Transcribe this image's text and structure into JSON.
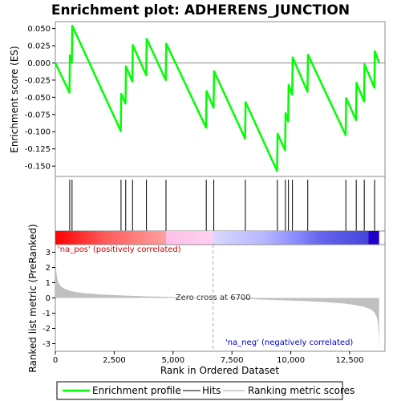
{
  "chart_data": [
    {
      "type": "line",
      "title": "Enrichment plot: ADHERENS_JUNCTION",
      "ylabel": "Enrichment score (ES)",
      "xlim": [
        0,
        14000
      ],
      "ylim": [
        -0.165,
        0.06
      ],
      "yticks": [
        0.05,
        0.025,
        0.0,
        -0.025,
        -0.05,
        -0.075,
        -0.1,
        -0.125,
        -0.15
      ],
      "ytick_labels": [
        "0.050",
        "0.025",
        "0.000",
        "-0.025",
        "-0.050",
        "-0.075",
        "-0.100",
        "-0.125",
        "-0.150"
      ],
      "series": [
        {
          "name": "Enrichment profile",
          "color": "#00ff00",
          "x": [
            0,
            600,
            620,
            700,
            720,
            2780,
            2800,
            2980,
            3000,
            3270,
            3290,
            3860,
            3880,
            4690,
            4710,
            6400,
            6420,
            6720,
            6740,
            8060,
            8080,
            9420,
            9440,
            9760,
            9780,
            9890,
            9910,
            10060,
            10080,
            10710,
            10730,
            12330,
            12350,
            12770,
            12790,
            13110,
            13130,
            13550,
            13570,
            13750
          ],
          "y": [
            0.0,
            -0.043,
            0.011,
            -0.0,
            0.054,
            -0.099,
            -0.045,
            -0.059,
            -0.005,
            -0.027,
            0.026,
            -0.018,
            0.035,
            -0.025,
            0.028,
            -0.094,
            -0.041,
            -0.065,
            -0.012,
            -0.11,
            -0.057,
            -0.157,
            -0.103,
            -0.127,
            -0.073,
            -0.085,
            -0.032,
            -0.046,
            0.008,
            -0.042,
            0.012,
            -0.105,
            -0.051,
            -0.083,
            -0.029,
            -0.056,
            -0.002,
            -0.036,
            0.017,
            0.0
          ]
        }
      ],
      "zero_line": 0.0
    },
    {
      "type": "hits",
      "series": [
        {
          "name": "Hits",
          "color": "#000000",
          "x": [
            610,
            710,
            2790,
            2990,
            3280,
            3870,
            4700,
            6410,
            6730,
            8070,
            9430,
            9770,
            9900,
            10070,
            10720,
            12340,
            12780,
            13120,
            13560
          ]
        }
      ]
    },
    {
      "type": "heatmap",
      "colorbar": {
        "stops": [
          {
            "x": 0,
            "color": "#ff0000"
          },
          {
            "x": 2100,
            "color": "#ff5a5a"
          },
          {
            "x": 4700,
            "color": "#ffa0a0"
          },
          {
            "x": 4701,
            "color": "#ffc0e8"
          },
          {
            "x": 6700,
            "color": "#ffd0f0"
          },
          {
            "x": 6701,
            "color": "#d8d8ff"
          },
          {
            "x": 8800,
            "color": "#b8b8ff"
          },
          {
            "x": 10300,
            "color": "#8888ff"
          },
          {
            "x": 11200,
            "color": "#6666ee"
          },
          {
            "x": 13300,
            "color": "#4444dd"
          },
          {
            "x": 13301,
            "color": "#2200cc"
          },
          {
            "x": 13750,
            "color": "#2200cc"
          }
        ]
      }
    },
    {
      "type": "area",
      "ylabel": "Ranked list metric (PreRanked)",
      "xlabel": "Rank in Ordered Dataset",
      "xlim": [
        0,
        14000
      ],
      "ylim": [
        -3.5,
        3.5
      ],
      "xticks": [
        0,
        2500,
        5000,
        7500,
        10000,
        12500
      ],
      "xtick_labels": [
        "0",
        "2,500",
        "5,000",
        "7,500",
        "10,000",
        "12,500"
      ],
      "yticks": [
        3,
        2,
        1,
        0,
        -1,
        -2,
        -3
      ],
      "ytick_labels": [
        "3",
        "2",
        "1",
        "0",
        "-1",
        "-2",
        "-3"
      ],
      "series": [
        {
          "name": "Ranking metric scores",
          "color": "#c0c0c0",
          "x": [
            0,
            30,
            80,
            150,
            250,
            400,
            600,
            900,
            1300,
            2000,
            3000,
            4000,
            5000,
            6000,
            6700,
            7500,
            8500,
            9500,
            10500,
            11500,
            12200,
            12700,
            13100,
            13400,
            13550,
            13650,
            13700,
            13730,
            13750
          ],
          "y": [
            2.8,
            1.9,
            1.3,
            0.95,
            0.75,
            0.6,
            0.48,
            0.38,
            0.3,
            0.22,
            0.15,
            0.1,
            0.06,
            0.03,
            0.0,
            -0.04,
            -0.09,
            -0.14,
            -0.2,
            -0.28,
            -0.36,
            -0.45,
            -0.58,
            -0.75,
            -0.95,
            -1.25,
            -1.6,
            -2.3,
            -3.4
          ]
        }
      ],
      "annotations": {
        "pos_label": "'na_pos' (positively correlated)",
        "neg_label": "'na_neg' (negatively correlated)",
        "zero_cross": "Zero cross at 6700",
        "zero_cross_x": 6700
      }
    }
  ],
  "legend": {
    "items": [
      {
        "label": "Enrichment profile",
        "color": "#00ff00"
      },
      {
        "label": "Hits",
        "color": "#000000"
      },
      {
        "label": "Ranking metric scores",
        "color": "#c0c0c0"
      }
    ]
  }
}
